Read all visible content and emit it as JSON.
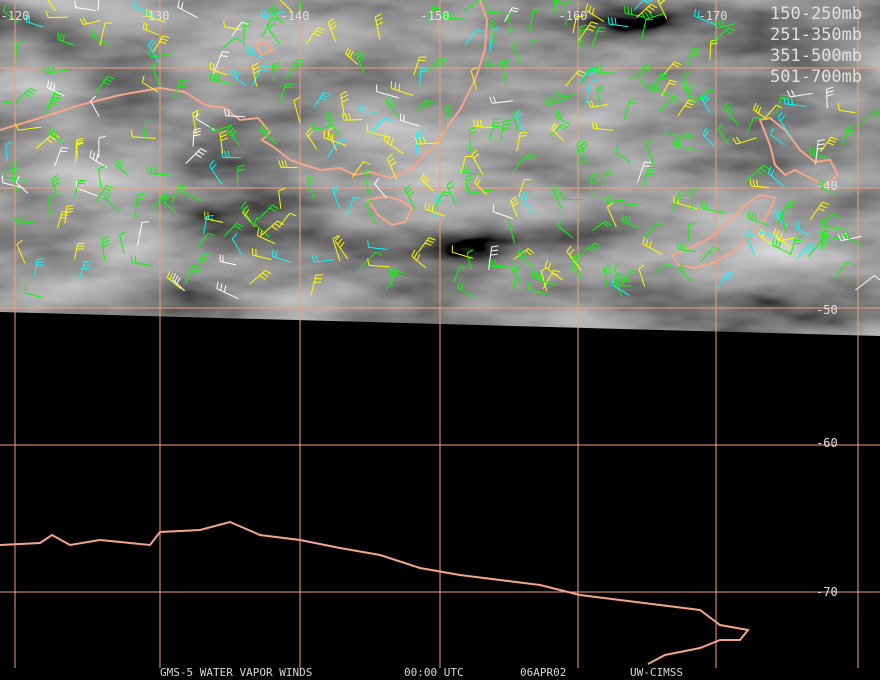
{
  "longitude_labels": [
    "-120",
    "-130",
    "-140",
    "-150",
    "-160",
    "-170"
  ],
  "latitude_labels": [
    "-40",
    "-50",
    "-60",
    "-70"
  ],
  "legend": [
    {
      "label": "150-250mb",
      "color": "#00ffff"
    },
    {
      "label": "251-350mb",
      "color": "#ffff00"
    },
    {
      "label": "351-500mb",
      "color": "#00ff00"
    },
    {
      "label": "501-700mb",
      "color": "#ffffff"
    }
  ],
  "footer": [
    "GMS-5 WATER VAPOR WINDS",
    "00:00 UTC",
    "06APR02",
    "UW-CIMSS"
  ]
}
